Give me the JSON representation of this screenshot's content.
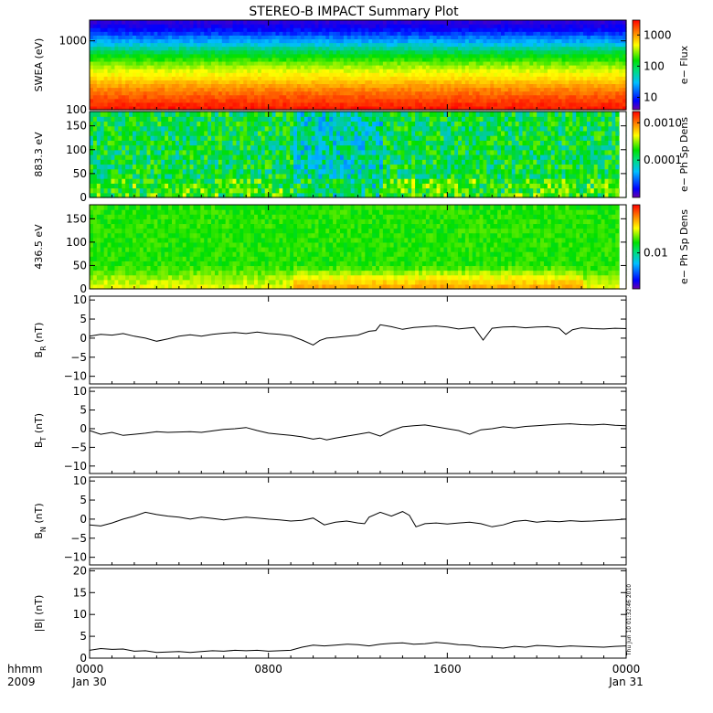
{
  "title": "STEREO-B IMPACT Summary Plot",
  "stamp": "Thu Jun 10 01:32:46 2010",
  "time_axis": {
    "label_line1": "hhmm",
    "label_line2": "2009",
    "ticks": [
      {
        "hours": 0,
        "label": "0000",
        "sublabel": "Jan 30"
      },
      {
        "hours": 8,
        "label": "0800",
        "sublabel": ""
      },
      {
        "hours": 16,
        "label": "1600",
        "sublabel": ""
      },
      {
        "hours": 24,
        "label": "0000",
        "sublabel": "Jan 31"
      }
    ],
    "range_hours": [
      0,
      24
    ]
  },
  "colors": {
    "spectral_scale": [
      "#6a00a8",
      "#0000ff",
      "#00bfff",
      "#00e000",
      "#ffff00",
      "#ff8c00",
      "#ff0000"
    ],
    "line": "#000000"
  },
  "chart_data": [
    {
      "type": "heatmap",
      "panel": "swea",
      "ylabel": "SWEA (eV)",
      "yscale": "log",
      "ylim": [
        100,
        2000
      ],
      "yticks": [
        {
          "value": 100,
          "label": "100"
        },
        {
          "value": 1000,
          "label": "1000"
        }
      ],
      "colorbar": {
        "label": "e− Flux",
        "scale": "log",
        "range": [
          4,
          3000
        ],
        "ticks": [
          {
            "value": 10,
            "label": "10"
          },
          {
            "value": 100,
            "label": "100"
          },
          {
            "value": 1000,
            "label": "1000"
          }
        ]
      },
      "energy_profile_color_index": [
        {
          "energy": 100,
          "index": 0.98
        },
        {
          "energy": 170,
          "index": 0.88
        },
        {
          "energy": 300,
          "index": 0.7
        },
        {
          "energy": 550,
          "index": 0.52
        },
        {
          "energy": 900,
          "index": 0.35
        },
        {
          "energy": 1400,
          "index": 0.18
        },
        {
          "energy": 2000,
          "index": 0.08
        }
      ]
    },
    {
      "type": "heatmap",
      "panel": "pad883",
      "ylabel": "883.3 eV",
      "ylim": [
        0,
        180
      ],
      "yticks": [
        {
          "value": 0,
          "label": "0"
        },
        {
          "value": 50,
          "label": "50"
        },
        {
          "value": 100,
          "label": "100"
        },
        {
          "value": 150,
          "label": "150"
        }
      ],
      "colorbar": {
        "label": "e− Ph Sp Dens",
        "scale": "log",
        "range": [
          1e-05,
          0.002
        ],
        "ticks": [
          {
            "value": 0.0001,
            "label": "0.0001"
          },
          {
            "value": 0.001,
            "label": "0.0010"
          }
        ]
      },
      "data_gaps_hours": [
        [
          8.0,
          8.2
        ]
      ]
    },
    {
      "type": "heatmap",
      "panel": "pad436",
      "ylabel": "436.5 eV",
      "ylim": [
        0,
        180
      ],
      "yticks": [
        {
          "value": 0,
          "label": "0"
        },
        {
          "value": 50,
          "label": "50"
        },
        {
          "value": 100,
          "label": "100"
        },
        {
          "value": 150,
          "label": "150"
        }
      ],
      "colorbar": {
        "label": "e− Ph Sp Dens",
        "scale": "log",
        "range": [
          0.003,
          0.05
        ],
        "ticks": [
          {
            "value": 0.01,
            "label": "0.01"
          }
        ]
      },
      "data_gaps_hours": [
        [
          8.0,
          8.2
        ]
      ]
    },
    {
      "type": "line",
      "panel": "br",
      "ylabel": "B",
      "ylabel_sub": "R",
      "ylabel_unit": " (nT)",
      "ylim": [
        -12,
        11
      ],
      "yticks": [
        {
          "value": -10,
          "label": "−10"
        },
        {
          "value": -5,
          "label": "−5"
        },
        {
          "value": 0,
          "label": "0"
        },
        {
          "value": 5,
          "label": "5"
        },
        {
          "value": 10,
          "label": "10"
        }
      ],
      "x": [
        0,
        0.5,
        1,
        1.5,
        2,
        2.5,
        3,
        3.5,
        4,
        4.5,
        5,
        5.5,
        6,
        6.5,
        7,
        7.5,
        8,
        8.5,
        9,
        9.5,
        10,
        10.3,
        10.6,
        11,
        11.5,
        12,
        12.5,
        12.8,
        13.0,
        13.5,
        14,
        14.5,
        15,
        15.5,
        16,
        16.5,
        17.2,
        17.6,
        18,
        18.5,
        19,
        19.5,
        20,
        20.5,
        21,
        21.3,
        21.6,
        22,
        22.5,
        23,
        23.5,
        24
      ],
      "y": [
        0.5,
        1.0,
        0.8,
        1.2,
        0.5,
        0.0,
        -0.8,
        -0.2,
        0.5,
        0.9,
        0.5,
        1.0,
        1.3,
        1.5,
        1.2,
        1.6,
        1.2,
        1.0,
        0.6,
        -0.5,
        -1.8,
        -0.6,
        0.0,
        0.2,
        0.5,
        0.8,
        1.8,
        2.0,
        3.5,
        3.0,
        2.3,
        2.8,
        3.0,
        3.2,
        2.9,
        2.4,
        2.8,
        -0.5,
        2.6,
        2.9,
        3.0,
        2.7,
        2.9,
        3.0,
        2.6,
        1.0,
        2.2,
        2.7,
        2.5,
        2.4,
        2.6,
        2.5
      ]
    },
    {
      "type": "line",
      "panel": "bt",
      "ylabel": "B",
      "ylabel_sub": "T",
      "ylabel_unit": " (nT)",
      "ylim": [
        -12,
        11
      ],
      "yticks": [
        {
          "value": -10,
          "label": "−10"
        },
        {
          "value": -5,
          "label": "−5"
        },
        {
          "value": 0,
          "label": "0"
        },
        {
          "value": 5,
          "label": "5"
        },
        {
          "value": 10,
          "label": "10"
        }
      ],
      "x": [
        0,
        0.5,
        1,
        1.5,
        2,
        2.5,
        3,
        3.5,
        4,
        4.5,
        5,
        5.5,
        6,
        6.5,
        7,
        7.5,
        8,
        8.5,
        9,
        9.5,
        10,
        10.3,
        10.6,
        11,
        11.5,
        12,
        12.5,
        13,
        13.5,
        14,
        14.5,
        15,
        15.5,
        16,
        16.5,
        17,
        17.5,
        18,
        18.5,
        19,
        19.5,
        20,
        20.5,
        21,
        21.5,
        22,
        22.5,
        23,
        23.5,
        24
      ],
      "y": [
        -0.5,
        -1.5,
        -1.0,
        -1.8,
        -1.5,
        -1.2,
        -0.8,
        -1.0,
        -0.9,
        -0.8,
        -1.0,
        -0.6,
        -0.2,
        0.0,
        0.3,
        -0.5,
        -1.2,
        -1.5,
        -1.8,
        -2.2,
        -2.8,
        -2.5,
        -3.0,
        -2.5,
        -2.0,
        -1.5,
        -1.0,
        -2.0,
        -0.5,
        0.5,
        0.8,
        1.0,
        0.5,
        0.0,
        -0.5,
        -1.5,
        -0.3,
        0.0,
        0.5,
        0.2,
        0.6,
        0.8,
        1.0,
        1.2,
        1.3,
        1.1,
        1.0,
        1.2,
        0.9,
        0.8
      ]
    },
    {
      "type": "line",
      "panel": "bn",
      "ylabel": "B",
      "ylabel_sub": "N",
      "ylabel_unit": " (nT)",
      "ylim": [
        -12,
        11
      ],
      "yticks": [
        {
          "value": -10,
          "label": "−10"
        },
        {
          "value": -5,
          "label": "−5"
        },
        {
          "value": 0,
          "label": "0"
        },
        {
          "value": 5,
          "label": "5"
        },
        {
          "value": 10,
          "label": "10"
        }
      ],
      "x": [
        0,
        0.5,
        1,
        1.5,
        2,
        2.5,
        3,
        3.5,
        4,
        4.5,
        5,
        5.5,
        6,
        6.5,
        7,
        7.5,
        8,
        8.5,
        9,
        9.5,
        10,
        10.5,
        11,
        11.5,
        12,
        12.3,
        12.5,
        13,
        13.5,
        14,
        14.3,
        14.6,
        15,
        15.5,
        16,
        16.5,
        17,
        17.5,
        18,
        18.5,
        19,
        19.5,
        20,
        20.5,
        21,
        21.5,
        22,
        22.5,
        23,
        23.5,
        24
      ],
      "y": [
        -1.5,
        -1.8,
        -1.0,
        0.0,
        0.8,
        1.8,
        1.2,
        0.8,
        0.5,
        0.0,
        0.5,
        0.2,
        -0.2,
        0.2,
        0.5,
        0.3,
        0.0,
        -0.2,
        -0.5,
        -0.3,
        0.3,
        -1.5,
        -0.8,
        -0.5,
        -1.0,
        -1.2,
        0.5,
        1.8,
        0.8,
        2.0,
        1.0,
        -2.0,
        -1.2,
        -1.0,
        -1.3,
        -1.0,
        -0.8,
        -1.2,
        -2.0,
        -1.5,
        -0.6,
        -0.3,
        -0.8,
        -0.5,
        -0.7,
        -0.4,
        -0.6,
        -0.5,
        -0.3,
        -0.2,
        0.0
      ]
    },
    {
      "type": "line",
      "panel": "bmag",
      "ylabel": "|B| (nT)",
      "ylim": [
        0,
        20.5
      ],
      "yticks": [
        {
          "value": 0,
          "label": "0"
        },
        {
          "value": 5,
          "label": "5"
        },
        {
          "value": 10,
          "label": "10"
        },
        {
          "value": 15,
          "label": "15"
        },
        {
          "value": 20,
          "label": "20"
        }
      ],
      "x": [
        0,
        0.5,
        1,
        1.5,
        2,
        2.5,
        3,
        3.5,
        4,
        4.5,
        5,
        5.5,
        6,
        6.5,
        7,
        7.5,
        8,
        8.5,
        9,
        9.5,
        10,
        10.5,
        11,
        11.5,
        12,
        12.5,
        13,
        13.5,
        14,
        14.5,
        15,
        15.5,
        16,
        16.5,
        17,
        17.5,
        18,
        18.5,
        19,
        19.5,
        20,
        20.5,
        21,
        21.5,
        22,
        22.5,
        23,
        23.5,
        24
      ],
      "y": [
        1.8,
        2.2,
        2.0,
        2.1,
        1.6,
        1.7,
        1.3,
        1.4,
        1.5,
        1.3,
        1.5,
        1.7,
        1.6,
        1.8,
        1.7,
        1.8,
        1.6,
        1.7,
        1.8,
        2.5,
        3.0,
        2.8,
        3.0,
        3.2,
        3.1,
        2.8,
        3.2,
        3.4,
        3.5,
        3.2,
        3.3,
        3.6,
        3.4,
        3.1,
        3.0,
        2.6,
        2.5,
        2.3,
        2.7,
        2.5,
        2.9,
        2.8,
        2.6,
        2.8,
        2.7,
        2.6,
        2.5,
        2.7,
        2.8
      ]
    }
  ]
}
